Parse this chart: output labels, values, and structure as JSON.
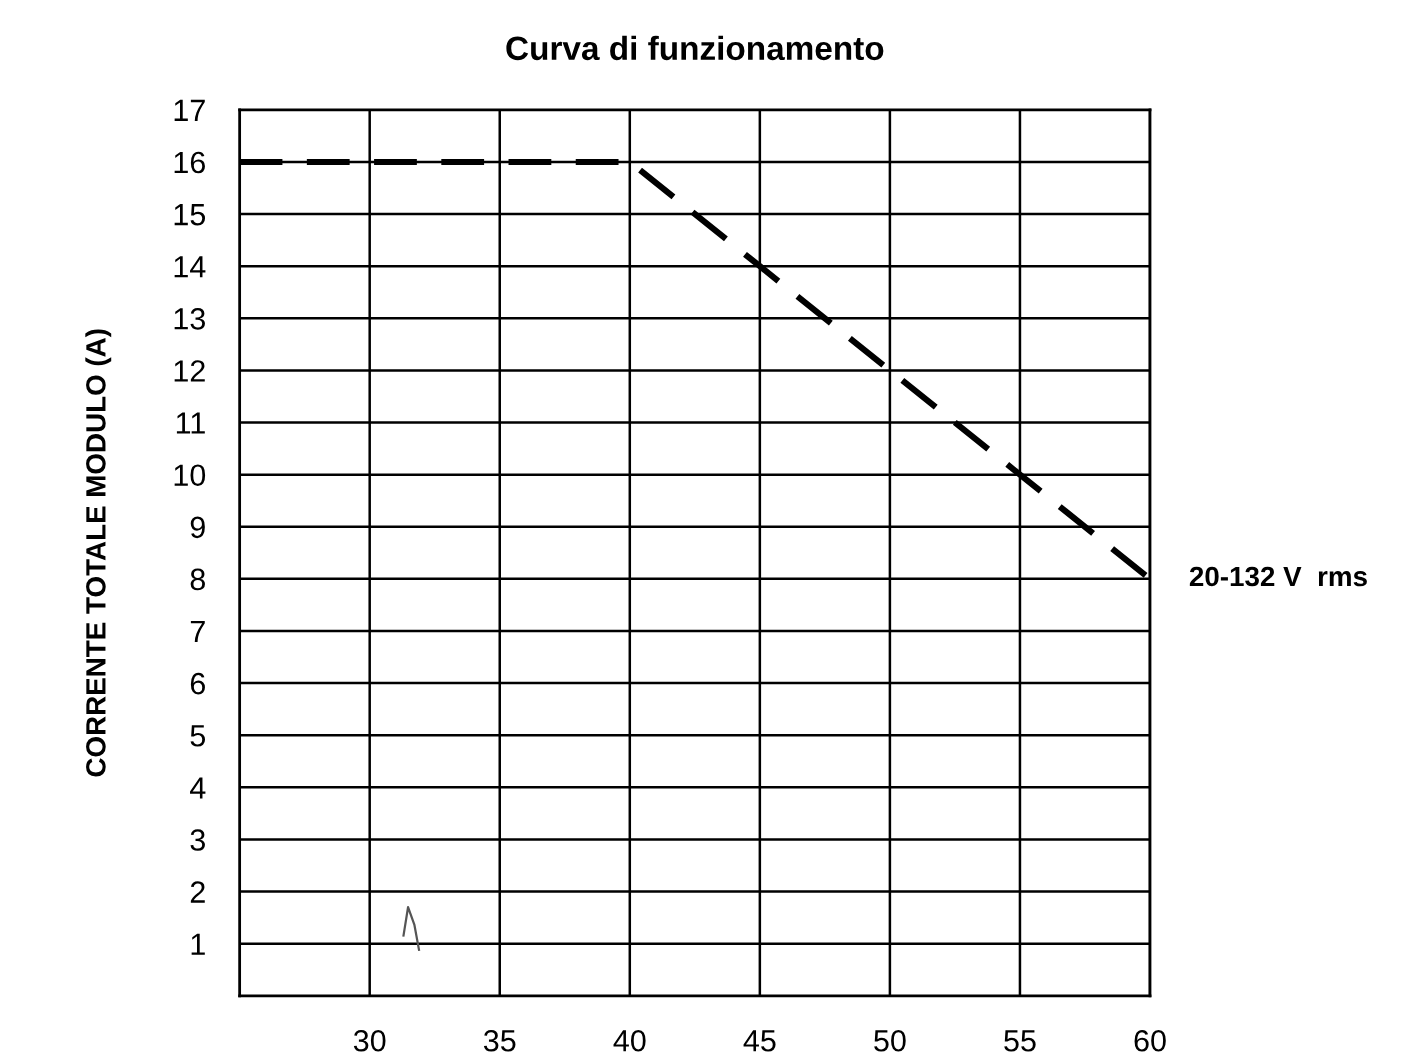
{
  "chart_data": {
    "type": "line",
    "title": "Curva di funzionamento",
    "ylabel": "CORRENTE TOTALE MODULO (A)",
    "x": [
      25,
      40,
      45,
      50,
      55,
      60
    ],
    "series": [
      {
        "color": "#000000",
        "values": [
          16,
          16,
          14,
          12,
          10,
          8
        ]
      }
    ],
    "line_style": "dashed",
    "marker": "none",
    "xlim": [
      25,
      60
    ],
    "xticks": [
      30,
      35,
      40,
      45,
      50,
      55,
      60
    ],
    "ylim": [
      0,
      17
    ],
    "yticks": [
      1,
      2,
      3,
      4,
      5,
      6,
      7,
      8,
      9,
      10,
      11,
      12,
      13,
      14,
      15,
      16,
      17
    ],
    "grid": true,
    "annotations": [
      {
        "text": "20-132 V  rms",
        "x": 60,
        "y": 8
      }
    ]
  }
}
